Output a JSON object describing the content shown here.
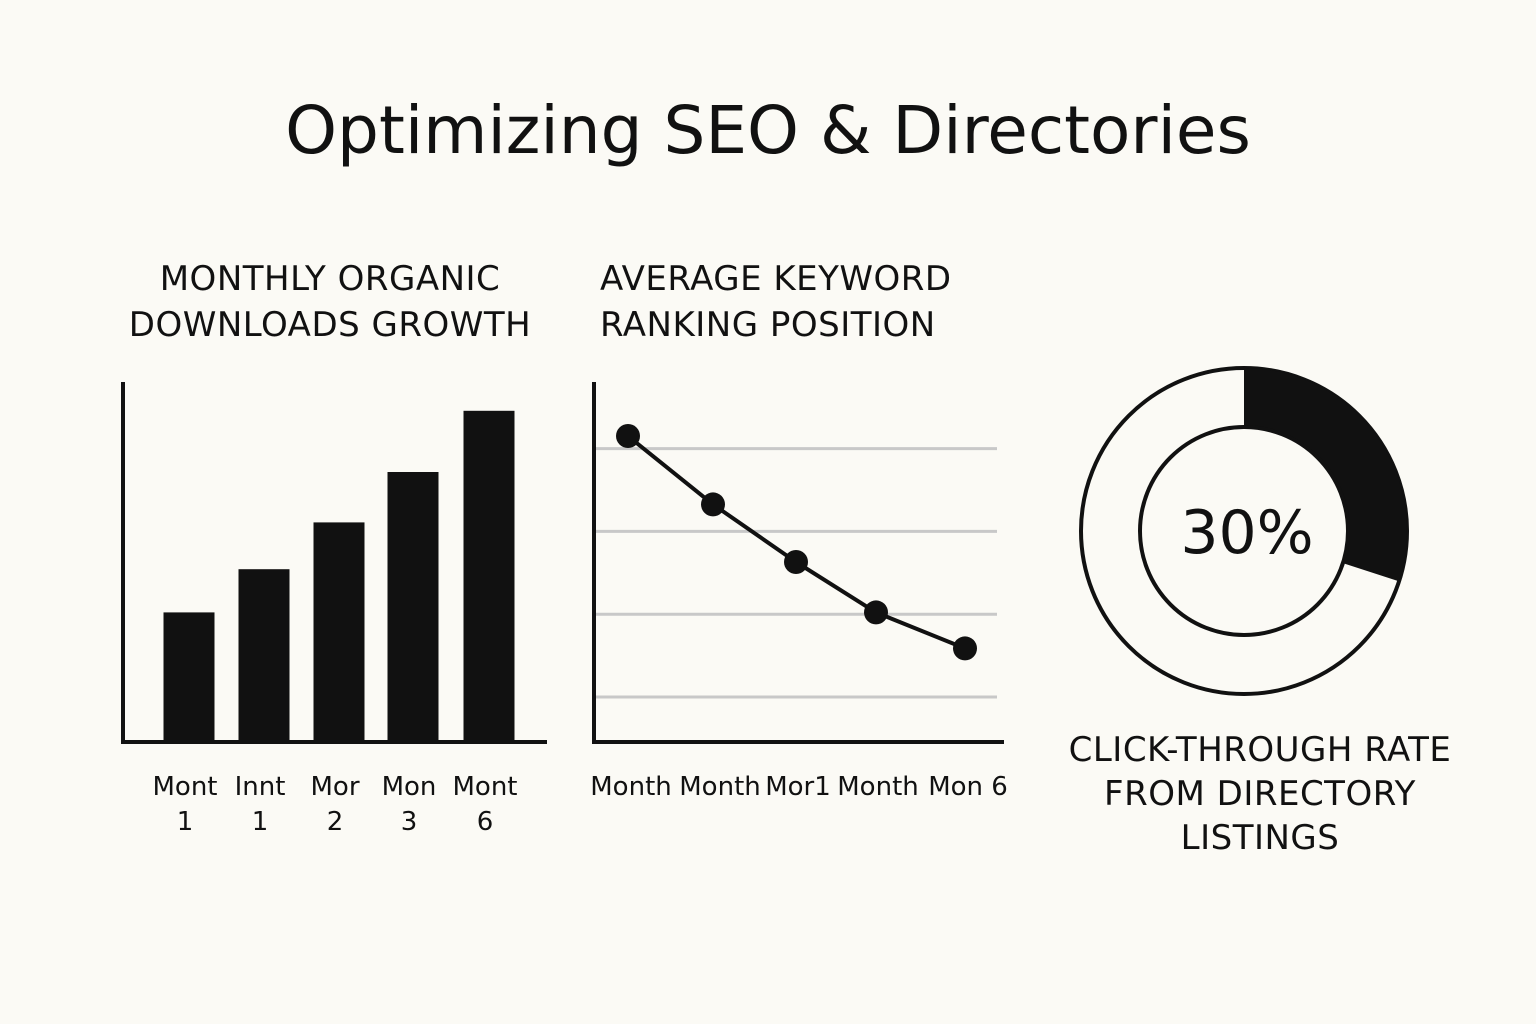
{
  "page": {
    "title": "Optimizing SEO & Directories"
  },
  "colors": {
    "background": "#fbfaf5",
    "ink": "#111111",
    "grid": "#c8c8c8",
    "donut_empty": "#fbfaf5"
  },
  "chart_data": [
    {
      "type": "bar",
      "title_lines": [
        "MONTHLY ORGANIC",
        "DOWNLOADS GROWTH"
      ],
      "categories": [
        [
          "Mont",
          "1"
        ],
        [
          "Innt",
          "1"
        ],
        [
          "Mor",
          "2"
        ],
        [
          "Mon",
          "3"
        ],
        [
          "Mont",
          "6"
        ]
      ],
      "values": [
        36,
        48,
        61,
        75,
        92
      ],
      "ylim": [
        0,
        100
      ],
      "xlabel": "",
      "ylabel": "",
      "grid": false
    },
    {
      "type": "line",
      "title_lines": [
        "AVERAGE KEYWORD",
        "RANKING POSITION"
      ],
      "categories": [
        "Month",
        "Month",
        "Mor1",
        "Month",
        "Mon 6"
      ],
      "values": [
        85,
        66,
        50,
        36,
        26
      ],
      "ylim": [
        0,
        100
      ],
      "gridlines": [
        12.5,
        35.5,
        58.5,
        81.5
      ],
      "xlabel": "",
      "ylabel": "",
      "grid": true
    },
    {
      "type": "pie",
      "variant": "donut",
      "center_label": "30%",
      "values": [
        30,
        70
      ],
      "segments": [
        "click-through",
        "remainder"
      ],
      "caption_lines": [
        "CLICK-THROUGH RATE",
        "FROM DIRECTORY",
        "LISTINGS"
      ]
    }
  ]
}
